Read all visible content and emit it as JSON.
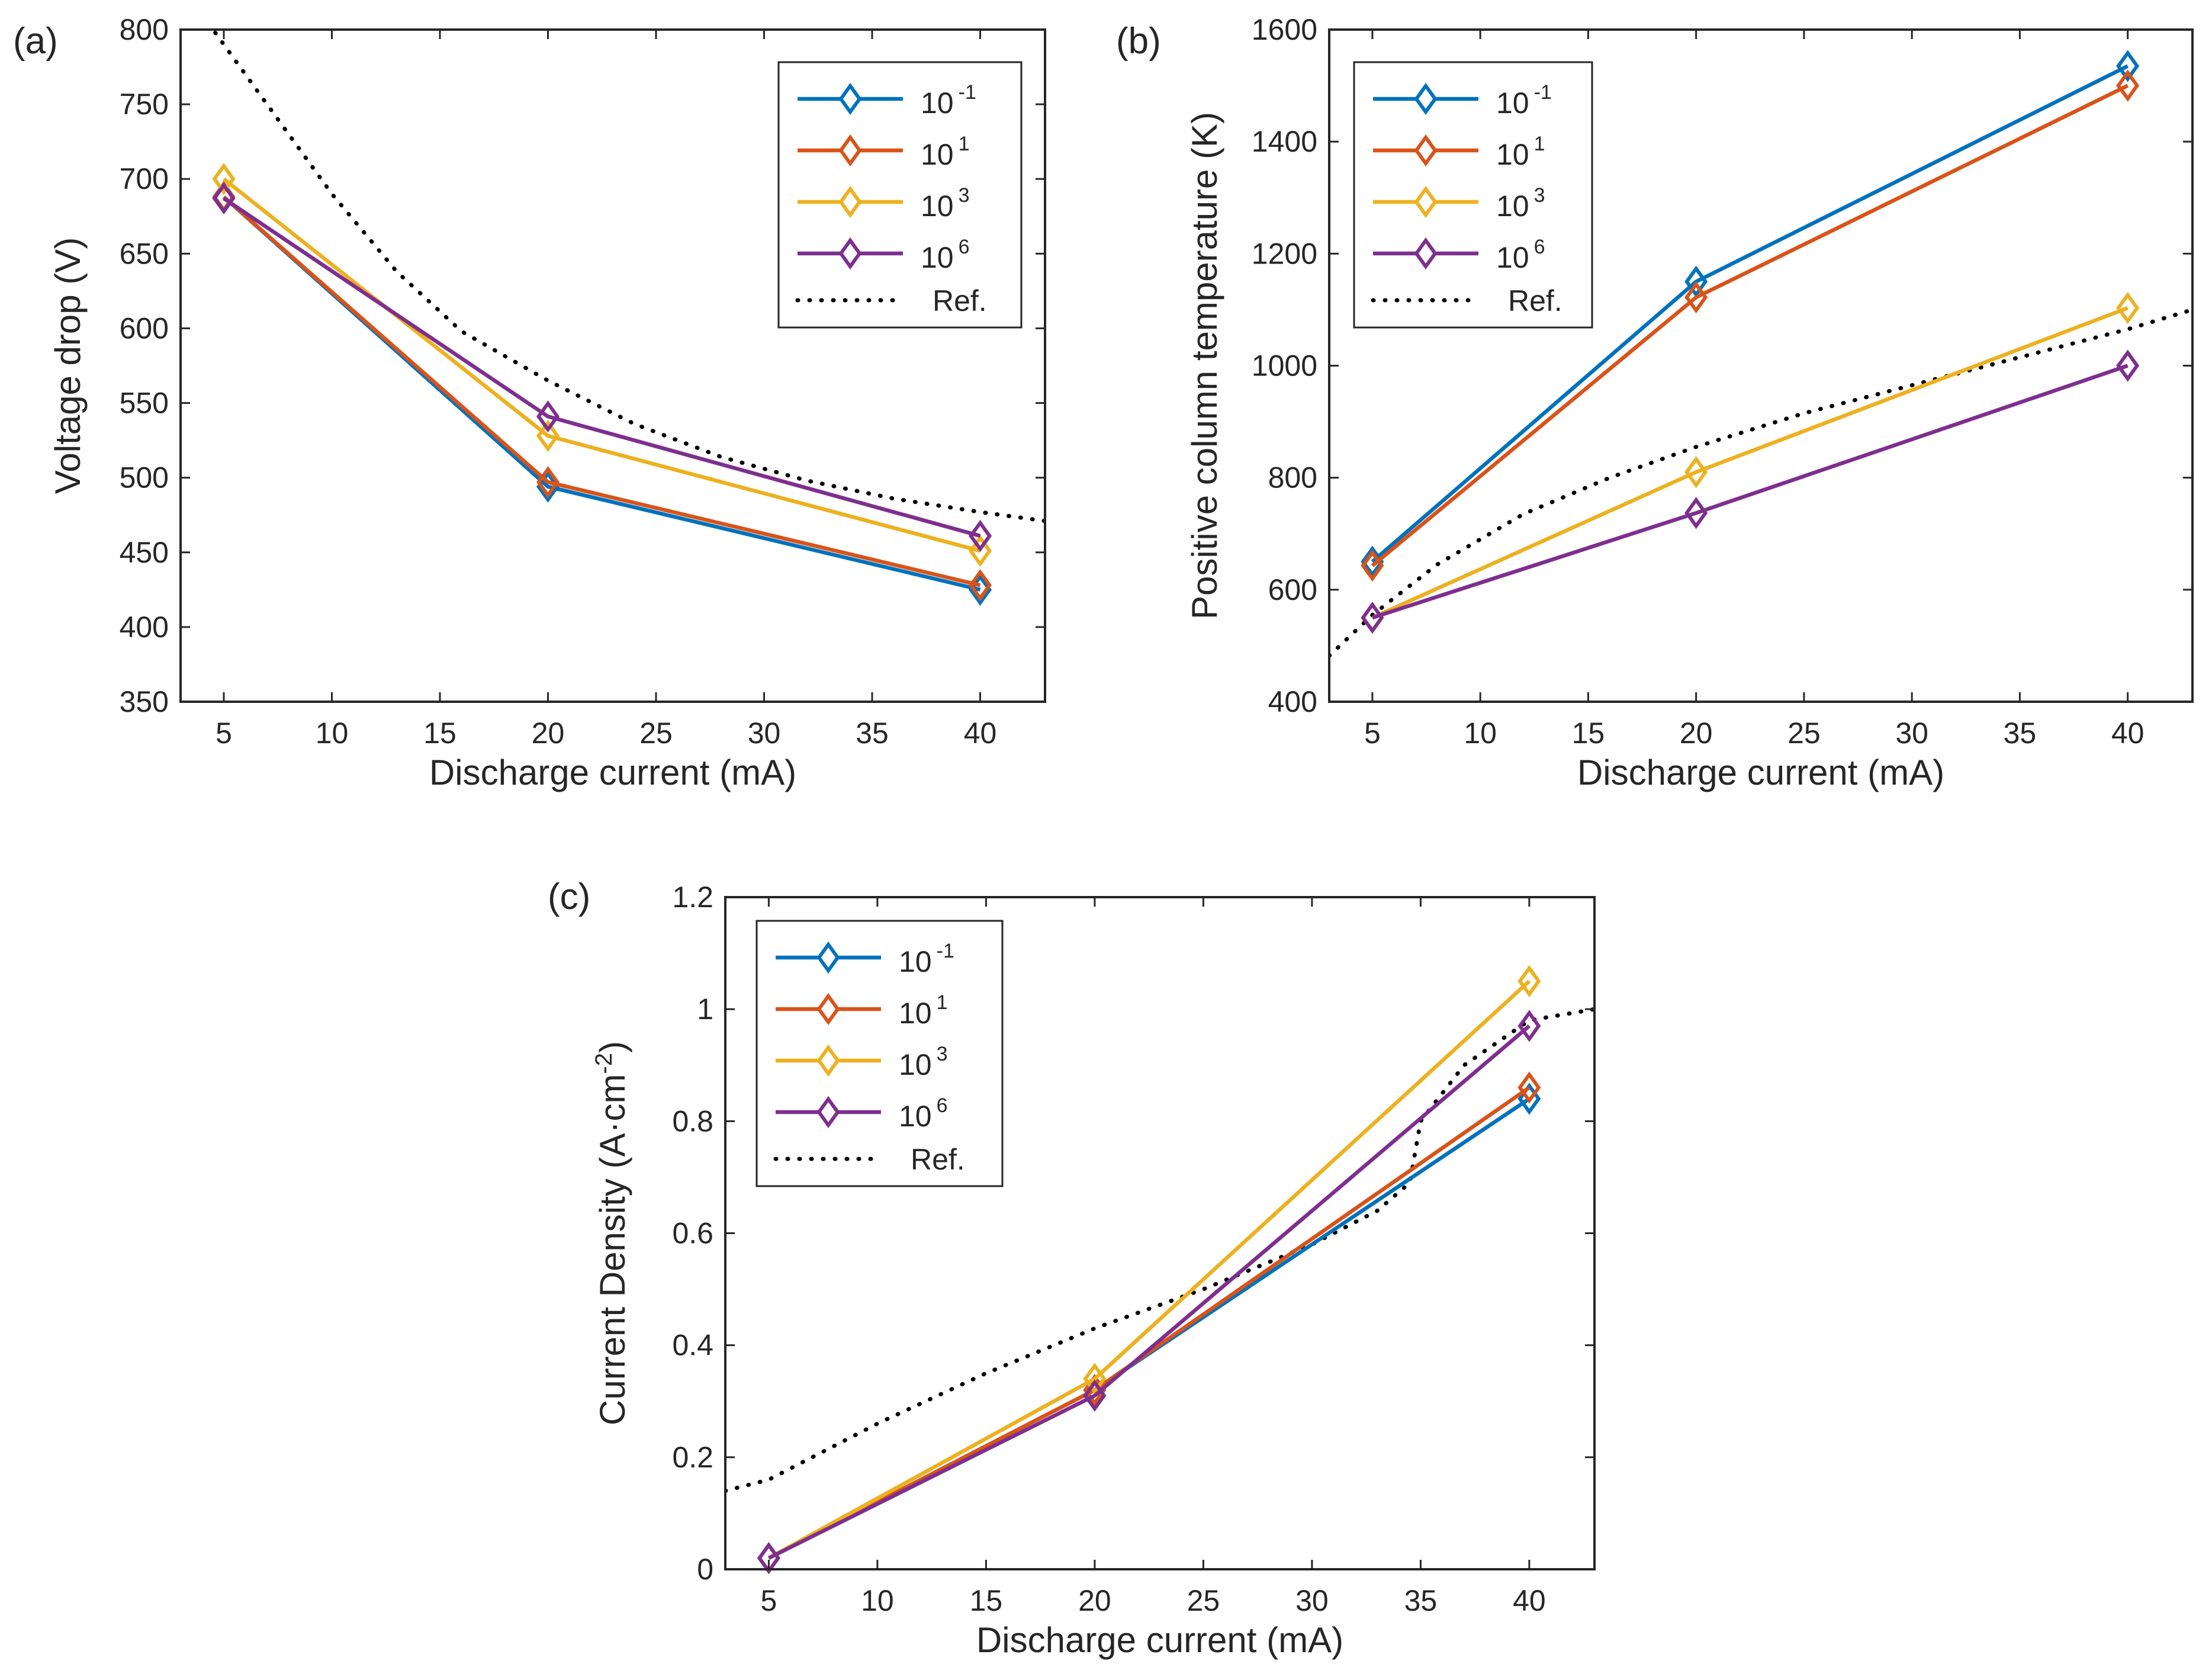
{
  "figure": {
    "colors": {
      "s1": "#0072BD",
      "s2": "#D95319",
      "s3": "#EDB120",
      "s4": "#7E2F8E",
      "ref": "#000000",
      "axis": "#262626"
    }
  },
  "chart_data": [
    {
      "panel": "(a)",
      "type": "line",
      "xlabel": "Discharge current (mA)",
      "ylabel": "Voltage drop (V)",
      "xlim": [
        3,
        43
      ],
      "ylim": [
        350,
        800
      ],
      "xticks": [
        5,
        10,
        15,
        20,
        25,
        30,
        35,
        40
      ],
      "yticks": [
        350,
        400,
        450,
        500,
        550,
        600,
        650,
        700,
        750,
        800
      ],
      "legend_position": "top-right",
      "x": [
        5,
        20,
        40
      ],
      "series": [
        {
          "name": "10^-1",
          "base": "10",
          "exp": "-1",
          "color_key": "s1",
          "values": [
            688,
            494,
            425
          ]
        },
        {
          "name": "10^1",
          "base": "10",
          "exp": "1",
          "color_key": "s2",
          "values": [
            688,
            497,
            428
          ]
        },
        {
          "name": "10^3",
          "base": "10",
          "exp": "3",
          "color_key": "s3",
          "values": [
            700,
            528,
            451
          ]
        },
        {
          "name": "10^6",
          "base": "10",
          "exp": "6",
          "color_key": "s4",
          "values": [
            687,
            541,
            461
          ]
        }
      ],
      "reference": {
        "name": "Ref.",
        "x": [
          3,
          4.5,
          7,
          10,
          13,
          16,
          20,
          24,
          28,
          32,
          36,
          40,
          43
        ],
        "y": [
          830,
          800,
          750,
          690,
          638,
          598,
          565,
          536,
          514,
          498,
          486,
          477,
          471
        ]
      }
    },
    {
      "panel": "(b)",
      "type": "line",
      "xlabel": "Discharge current (mA)",
      "ylabel": "Positive column temperature (K)",
      "xlim": [
        3,
        43
      ],
      "ylim": [
        400,
        1600
      ],
      "xticks": [
        5,
        10,
        15,
        20,
        25,
        30,
        35,
        40
      ],
      "yticks": [
        400,
        600,
        800,
        1000,
        1200,
        1400,
        1600
      ],
      "legend_position": "top-left",
      "x": [
        5,
        20,
        40
      ],
      "series": [
        {
          "name": "10^-1",
          "base": "10",
          "exp": "-1",
          "color_key": "s1",
          "values": [
            650,
            1150,
            1535
          ]
        },
        {
          "name": "10^1",
          "base": "10",
          "exp": "1",
          "color_key": "s2",
          "values": [
            643,
            1122,
            1500
          ]
        },
        {
          "name": "10^3",
          "base": "10",
          "exp": "3",
          "color_key": "s3",
          "values": [
            550,
            810,
            1103
          ]
        },
        {
          "name": "10^6",
          "base": "10",
          "exp": "6",
          "color_key": "s4",
          "values": [
            550,
            737,
            1000
          ]
        }
      ],
      "reference": {
        "name": "Ref.",
        "x": [
          3,
          5,
          8,
          12,
          16,
          20,
          25,
          30,
          35,
          40,
          43
        ],
        "y": [
          482,
          555,
          645,
          735,
          800,
          855,
          915,
          965,
          1015,
          1065,
          1100
        ]
      }
    },
    {
      "panel": "(c)",
      "type": "line",
      "xlabel": "Discharge current (mA)",
      "ylabel": "Current Density (A·cm",
      "ylabel_sup": "-2",
      "ylabel_tail": ")",
      "xlim": [
        3,
        43
      ],
      "ylim": [
        0,
        1.2
      ],
      "xticks": [
        5,
        10,
        15,
        20,
        25,
        30,
        35,
        40
      ],
      "yticks": [
        0,
        0.2,
        0.4,
        0.6,
        0.8,
        1,
        1.2
      ],
      "ytick_labels": [
        "0",
        "0.2",
        "0.4",
        "0.6",
        "0.8",
        "1",
        "1.2"
      ],
      "legend_position": "top-left",
      "x": [
        5,
        20,
        40
      ],
      "series": [
        {
          "name": "10^-1",
          "base": "10",
          "exp": "-1",
          "color_key": "s1",
          "values": [
            0.02,
            0.32,
            0.84
          ]
        },
        {
          "name": "10^1",
          "base": "10",
          "exp": "1",
          "color_key": "s2",
          "values": [
            0.02,
            0.32,
            0.86
          ]
        },
        {
          "name": "10^3",
          "base": "10",
          "exp": "3",
          "color_key": "s3",
          "values": [
            0.02,
            0.34,
            1.05
          ]
        },
        {
          "name": "10^6",
          "base": "10",
          "exp": "6",
          "color_key": "s4",
          "values": [
            0.02,
            0.31,
            0.97
          ]
        }
      ],
      "reference": {
        "name": "Ref.",
        "x": [
          3,
          5,
          10,
          15,
          20,
          25,
          30,
          33,
          34.5,
          35,
          37,
          40,
          43
        ],
        "y": [
          0.14,
          0.16,
          0.26,
          0.35,
          0.43,
          0.5,
          0.58,
          0.64,
          0.69,
          0.8,
          0.9,
          0.98,
          1.0
        ]
      }
    }
  ]
}
